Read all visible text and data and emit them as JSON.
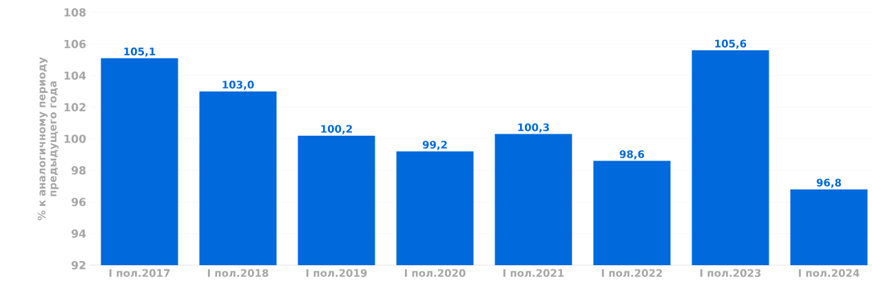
{
  "chart_data": {
    "type": "bar",
    "ylabel": "% к аналогичному периоду предыдущего года",
    "categories": [
      "I пол.2017",
      "I пол.2018",
      "I пол.2019",
      "I пол.2020",
      "I пол.2021",
      "I пол.2022",
      "I пол.2023",
      "I пол.2024"
    ],
    "values": [
      105.1,
      103.0,
      100.2,
      99.2,
      100.3,
      98.6,
      105.6,
      96.8
    ],
    "value_labels": [
      "105,1",
      "103,0",
      "100,2",
      "99,2",
      "100,3",
      "98,6",
      "105,6",
      "96,8"
    ],
    "color": "#0069db",
    "ylim": [
      92,
      108
    ],
    "yticks": [
      92,
      94,
      96,
      98,
      100,
      102,
      104,
      106,
      108
    ],
    "grid": "y"
  }
}
